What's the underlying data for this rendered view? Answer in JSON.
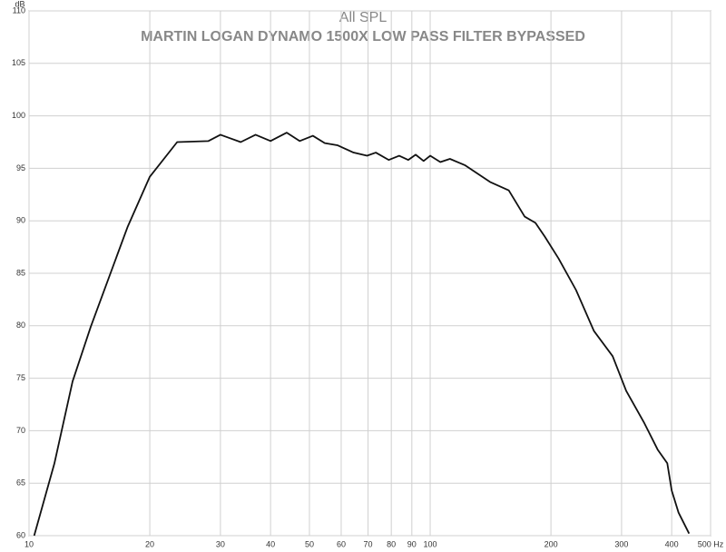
{
  "chart_data": {
    "type": "line",
    "title": "All SPL",
    "subtitle": "MARTIN LOGAN DYNAMO 1500X LOW PASS FILTER BYPASSED",
    "y_label": "dB",
    "xscale": "log",
    "grid": true,
    "xlim": [
      10,
      500
    ],
    "ylim": [
      60,
      110
    ],
    "xticks": [
      10,
      20,
      30,
      40,
      50,
      60,
      70,
      80,
      90,
      100,
      200,
      300,
      400,
      {
        "value": 500,
        "label": "500 Hz"
      }
    ],
    "yticks": [
      60,
      65,
      70,
      75,
      80,
      85,
      90,
      95,
      100,
      105,
      110
    ],
    "x": [
      10.3,
      11.57,
      12.84,
      14.25,
      17.6,
      20,
      23.4,
      28,
      30,
      33.7,
      36.7,
      40,
      43.9,
      47.3,
      51,
      54.6,
      58.7,
      64.4,
      69.6,
      73.2,
      78.8,
      83.7,
      88.2,
      92,
      96.3,
      100,
      106,
      112,
      122,
      130,
      141,
      157,
      172,
      183,
      193,
      209,
      231,
      256,
      285,
      308,
      341,
      369,
      390,
      400,
      416,
      442
    ],
    "series": [
      {
        "color": "#111111",
        "values": [
          60,
          66.9,
          74.7,
          79.9,
          89.4,
          94.2,
          97.5,
          97.6,
          98.2,
          97.5,
          98.2,
          97.6,
          98.4,
          97.6,
          98.1,
          97.4,
          97.2,
          96.5,
          96.2,
          96.5,
          95.8,
          96.2,
          95.8,
          96.3,
          95.7,
          96.2,
          95.6,
          95.9,
          95.3,
          94.6,
          93.7,
          92.9,
          90.4,
          89.8,
          88.5,
          86.4,
          83.4,
          79.5,
          77.1,
          73.8,
          70.8,
          68.2,
          66.9,
          64.3,
          62.2,
          60.2
        ]
      }
    ]
  }
}
